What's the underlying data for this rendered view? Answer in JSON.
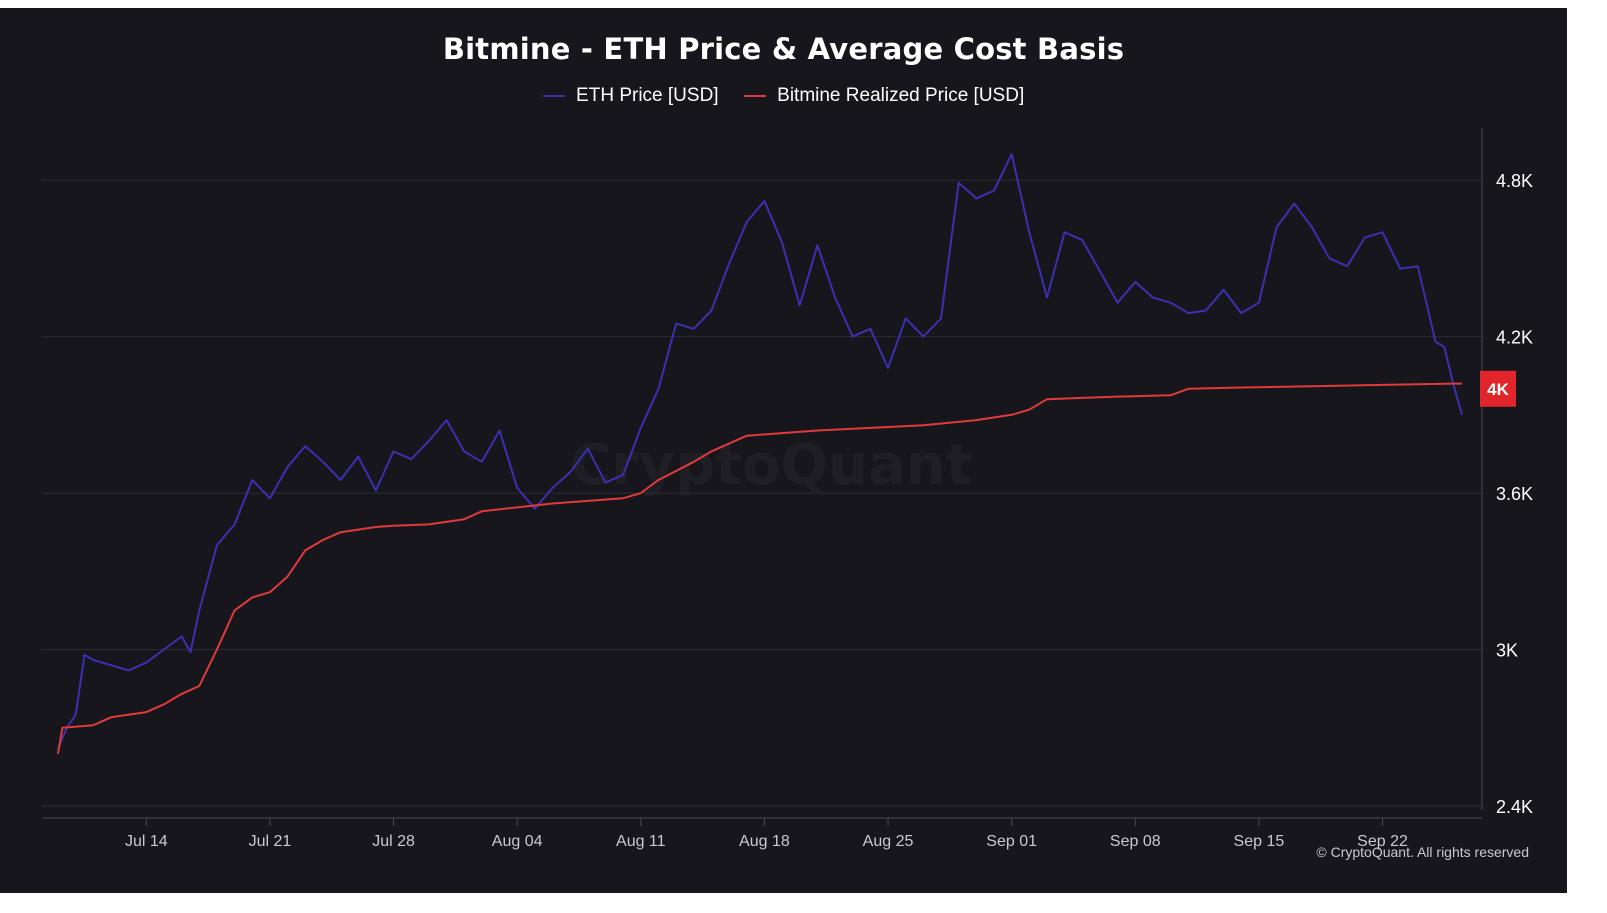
{
  "chart_data": {
    "type": "line",
    "title": "Bitmine - ETH Price & Average Cost Basis",
    "xlabel": "",
    "ylabel": "",
    "x_ticks": [
      "Jul 14",
      "Jul 21",
      "Jul 28",
      "Aug 04",
      "Aug 11",
      "Aug 18",
      "Aug 25",
      "Sep 01",
      "Sep 08",
      "Sep 15",
      "Sep 22"
    ],
    "y_ticks": [
      "2.4K",
      "3K",
      "3.6K",
      "4.2K",
      "4.8K"
    ],
    "y_tick_values": [
      2400,
      3000,
      3600,
      4200,
      4800
    ],
    "ylim": [
      2400,
      5000
    ],
    "xlim": [
      "2025-07-09",
      "2025-09-26"
    ],
    "grid": true,
    "legend_position": "top-center",
    "current_value_label": "4K",
    "current_value": 4000,
    "series": [
      {
        "name": "ETH Price [USD]",
        "color": "#3d2fb0",
        "points": [
          [
            "2025-07-09",
            2620
          ],
          [
            "2025-07-09T12",
            2700
          ],
          [
            "2025-07-10",
            2750
          ],
          [
            "2025-07-10T12",
            2980
          ],
          [
            "2025-07-11",
            2960
          ],
          [
            "2025-07-12",
            2940
          ],
          [
            "2025-07-13",
            2920
          ],
          [
            "2025-07-14",
            2950
          ],
          [
            "2025-07-15",
            3000
          ],
          [
            "2025-07-16",
            3050
          ],
          [
            "2025-07-16T12",
            2990
          ],
          [
            "2025-07-17",
            3150
          ],
          [
            "2025-07-18",
            3400
          ],
          [
            "2025-07-19",
            3480
          ],
          [
            "2025-07-20",
            3650
          ],
          [
            "2025-07-21",
            3580
          ],
          [
            "2025-07-22",
            3700
          ],
          [
            "2025-07-23",
            3780
          ],
          [
            "2025-07-24",
            3720
          ],
          [
            "2025-07-25",
            3650
          ],
          [
            "2025-07-26",
            3740
          ],
          [
            "2025-07-27",
            3610
          ],
          [
            "2025-07-28",
            3760
          ],
          [
            "2025-07-29",
            3730
          ],
          [
            "2025-07-30",
            3800
          ],
          [
            "2025-07-31",
            3880
          ],
          [
            "2025-08-01",
            3760
          ],
          [
            "2025-08-02",
            3720
          ],
          [
            "2025-08-03",
            3840
          ],
          [
            "2025-08-04",
            3620
          ],
          [
            "2025-08-05",
            3540
          ],
          [
            "2025-08-06",
            3620
          ],
          [
            "2025-08-07",
            3680
          ],
          [
            "2025-08-08",
            3770
          ],
          [
            "2025-08-09",
            3640
          ],
          [
            "2025-08-10",
            3670
          ],
          [
            "2025-08-11",
            3850
          ],
          [
            "2025-08-12",
            4000
          ],
          [
            "2025-08-13",
            4250
          ],
          [
            "2025-08-14",
            4230
          ],
          [
            "2025-08-15",
            4300
          ],
          [
            "2025-08-16",
            4480
          ],
          [
            "2025-08-17",
            4640
          ],
          [
            "2025-08-18",
            4720
          ],
          [
            "2025-08-19",
            4560
          ],
          [
            "2025-08-20",
            4320
          ],
          [
            "2025-08-21",
            4550
          ],
          [
            "2025-08-22",
            4350
          ],
          [
            "2025-08-23",
            4200
          ],
          [
            "2025-08-24",
            4230
          ],
          [
            "2025-08-25",
            4080
          ],
          [
            "2025-08-26",
            4270
          ],
          [
            "2025-08-27",
            4200
          ],
          [
            "2025-08-28",
            4270
          ],
          [
            "2025-08-29",
            4790
          ],
          [
            "2025-08-30",
            4730
          ],
          [
            "2025-08-31",
            4760
          ],
          [
            "2025-09-01",
            4900
          ],
          [
            "2025-09-02",
            4600
          ],
          [
            "2025-09-03",
            4350
          ],
          [
            "2025-09-04",
            4600
          ],
          [
            "2025-09-05",
            4570
          ],
          [
            "2025-09-06",
            4450
          ],
          [
            "2025-09-07",
            4330
          ],
          [
            "2025-09-08",
            4410
          ],
          [
            "2025-09-09",
            4350
          ],
          [
            "2025-09-10",
            4330
          ],
          [
            "2025-09-11",
            4290
          ],
          [
            "2025-09-12",
            4300
          ],
          [
            "2025-09-13",
            4380
          ],
          [
            "2025-09-14",
            4290
          ],
          [
            "2025-09-15",
            4330
          ],
          [
            "2025-09-16",
            4620
          ],
          [
            "2025-09-17",
            4710
          ],
          [
            "2025-09-18",
            4620
          ],
          [
            "2025-09-19",
            4500
          ],
          [
            "2025-09-20",
            4470
          ],
          [
            "2025-09-21",
            4580
          ],
          [
            "2025-09-22",
            4600
          ],
          [
            "2025-09-23",
            4460
          ],
          [
            "2025-09-24",
            4470
          ],
          [
            "2025-09-25",
            4180
          ],
          [
            "2025-09-25T12",
            4160
          ],
          [
            "2025-09-26",
            4020
          ],
          [
            "2025-09-26T12",
            3900
          ]
        ]
      },
      {
        "name": "Bitmine Realized Price [USD]",
        "color": "#e03a3a",
        "points": [
          [
            "2025-07-09",
            2600
          ],
          [
            "2025-07-09T06",
            2700
          ],
          [
            "2025-07-11",
            2710
          ],
          [
            "2025-07-12",
            2740
          ],
          [
            "2025-07-14",
            2760
          ],
          [
            "2025-07-15",
            2790
          ],
          [
            "2025-07-16",
            2830
          ],
          [
            "2025-07-17",
            2860
          ],
          [
            "2025-07-18",
            3000
          ],
          [
            "2025-07-19",
            3150
          ],
          [
            "2025-07-20",
            3200
          ],
          [
            "2025-07-21",
            3220
          ],
          [
            "2025-07-22",
            3280
          ],
          [
            "2025-07-23",
            3380
          ],
          [
            "2025-07-24",
            3420
          ],
          [
            "2025-07-25",
            3450
          ],
          [
            "2025-07-26",
            3460
          ],
          [
            "2025-07-27",
            3470
          ],
          [
            "2025-07-28",
            3475
          ],
          [
            "2025-07-30",
            3480
          ],
          [
            "2025-08-01",
            3500
          ],
          [
            "2025-08-02",
            3530
          ],
          [
            "2025-08-04",
            3545
          ],
          [
            "2025-08-06",
            3560
          ],
          [
            "2025-08-08",
            3570
          ],
          [
            "2025-08-10",
            3580
          ],
          [
            "2025-08-11",
            3600
          ],
          [
            "2025-08-12",
            3650
          ],
          [
            "2025-08-14",
            3720
          ],
          [
            "2025-08-15",
            3760
          ],
          [
            "2025-08-17",
            3820
          ],
          [
            "2025-08-19",
            3830
          ],
          [
            "2025-08-21",
            3840
          ],
          [
            "2025-08-24",
            3850
          ],
          [
            "2025-08-27",
            3860
          ],
          [
            "2025-08-30",
            3880
          ],
          [
            "2025-09-01",
            3900
          ],
          [
            "2025-09-02",
            3920
          ],
          [
            "2025-09-03",
            3960
          ],
          [
            "2025-09-05",
            3965
          ],
          [
            "2025-09-07",
            3970
          ],
          [
            "2025-09-10",
            3975
          ],
          [
            "2025-09-11",
            4000
          ],
          [
            "2025-09-14",
            4005
          ],
          [
            "2025-09-18",
            4010
          ],
          [
            "2025-09-22",
            4015
          ],
          [
            "2025-09-26",
            4020
          ],
          [
            "2025-09-26T12",
            4020
          ]
        ]
      }
    ]
  },
  "copyright": "© CryptoQuant. All rights reserved",
  "watermark": "CryptoQuant"
}
